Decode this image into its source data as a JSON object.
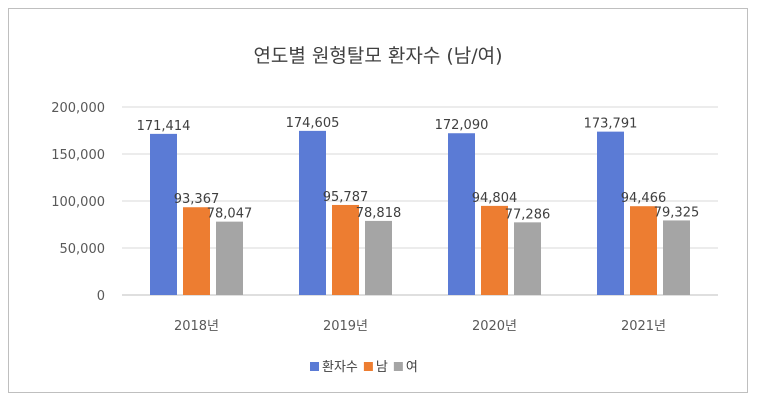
{
  "chart_data": {
    "type": "bar",
    "title": "연도별 원형탈모 환자수 (남/여)",
    "categories": [
      "2018년",
      "2019년",
      "2020년",
      "2021년"
    ],
    "series": [
      {
        "name": "환자수",
        "color": "#5b7bd5",
        "values": [
          171414,
          174605,
          172090,
          173791
        ],
        "labels": [
          "171,414",
          "174,605",
          "172,090",
          "173,791"
        ]
      },
      {
        "name": "남",
        "color": "#ed7d31",
        "values": [
          93367,
          95787,
          94804,
          94466
        ],
        "labels": [
          "93,367",
          "95,787",
          "94,804",
          "94,466"
        ]
      },
      {
        "name": "여",
        "color": "#a5a5a5",
        "values": [
          78047,
          78818,
          77286,
          79325
        ],
        "labels": [
          "78,047",
          "78,818",
          "77,286",
          "79,325"
        ]
      }
    ],
    "ylim": [
      0,
      200000
    ],
    "yticks": [
      0,
      50000,
      100000,
      150000,
      200000
    ],
    "ytick_labels": [
      "0",
      "50,000",
      "100,000",
      "150,000",
      "200,000"
    ],
    "grid": true,
    "legend_position": "bottom"
  }
}
